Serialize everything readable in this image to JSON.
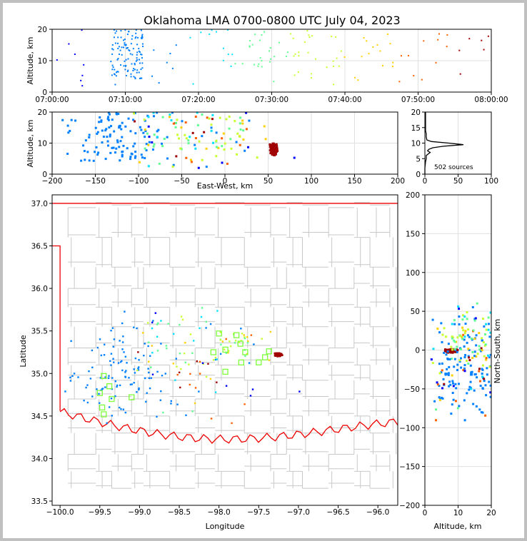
{
  "chart_data": [
    {
      "id": "time_height",
      "type": "scatter",
      "title": "Oklahoma LMA 0700-0800 UTC July 04, 2023",
      "ylabel": "Altitude, km",
      "xlim": [
        "07:00:00",
        "08:00:00"
      ],
      "ylim": [
        0,
        20
      ],
      "xticks": [
        "07:00:00",
        "07:10:00",
        "07:20:00",
        "07:30:00",
        "07:40:00",
        "07:50:00",
        "08:00:00"
      ],
      "yticks": [
        "0",
        "10",
        "20"
      ],
      "grid": true,
      "color_by": "time"
    },
    {
      "id": "ew_height",
      "type": "scatter",
      "xlabel": "East-West, km",
      "ylabel": "Altitude, km",
      "xlim": [
        -200,
        200
      ],
      "ylim": [
        0,
        20
      ],
      "xticks": [
        "−200",
        "−150",
        "−100",
        "−50",
        "0",
        "50",
        "100",
        "150",
        "200"
      ],
      "yticks": [
        "0",
        "10",
        "20"
      ],
      "grid": true
    },
    {
      "id": "histogram",
      "type": "line",
      "xlim": [
        0,
        100
      ],
      "ylim": [
        0,
        20
      ],
      "xticks": [
        "0",
        "50",
        "100"
      ],
      "yticks": [
        "0",
        "5",
        "10",
        "15",
        "20"
      ],
      "annotation": "502 sources",
      "profile": [
        {
          "alt": 0,
          "count": 0
        },
        {
          "alt": 2,
          "count": 0
        },
        {
          "alt": 4,
          "count": 1
        },
        {
          "alt": 5,
          "count": 2
        },
        {
          "alt": 6,
          "count": 2
        },
        {
          "alt": 6.5,
          "count": 5
        },
        {
          "alt": 7,
          "count": 8
        },
        {
          "alt": 7.5,
          "count": 4
        },
        {
          "alt": 8,
          "count": 6
        },
        {
          "alt": 8.5,
          "count": 12
        },
        {
          "alt": 9,
          "count": 28
        },
        {
          "alt": 9.5,
          "count": 58
        },
        {
          "alt": 10,
          "count": 36
        },
        {
          "alt": 10.5,
          "count": 10
        },
        {
          "alt": 11,
          "count": 3
        },
        {
          "alt": 12,
          "count": 2
        },
        {
          "alt": 13,
          "count": 2
        },
        {
          "alt": 14,
          "count": 1
        },
        {
          "alt": 16,
          "count": 1
        },
        {
          "alt": 18,
          "count": 1
        },
        {
          "alt": 20,
          "count": 1
        }
      ]
    },
    {
      "id": "plan_view",
      "type": "scatter",
      "xlabel": "Longitude",
      "ylabel": "Latitude",
      "xlim": [
        -100.1,
        -95.75
      ],
      "ylim": [
        33.45,
        37.1
      ],
      "xticks": [
        "−100.0",
        "−99.5",
        "−99.0",
        "−98.5",
        "−98.0",
        "−97.5",
        "−97.0",
        "−96.5",
        "−96.0"
      ],
      "yticks": [
        "33.5",
        "34.0",
        "34.5",
        "35.0",
        "35.5",
        "36.0",
        "36.5",
        "37.0"
      ],
      "stations": [
        [
          -99.45,
          34.97
        ],
        [
          -99.38,
          34.85
        ],
        [
          -99.5,
          34.77
        ],
        [
          -99.35,
          34.7
        ],
        [
          -99.47,
          34.6
        ],
        [
          -99.45,
          34.52
        ],
        [
          -99.1,
          34.72
        ],
        [
          -98.0,
          35.47
        ],
        [
          -98.07,
          35.25
        ],
        [
          -97.92,
          35.28
        ],
        [
          -97.92,
          35.02
        ],
        [
          -97.78,
          35.45
        ],
        [
          -97.73,
          35.35
        ],
        [
          -97.67,
          35.25
        ],
        [
          -97.72,
          35.13
        ],
        [
          -97.5,
          35.13
        ],
        [
          -97.42,
          35.19
        ],
        [
          -97.37,
          35.26
        ]
      ]
    },
    {
      "id": "ns_height",
      "type": "scatter",
      "xlabel": "Altitude, km",
      "ylabel": "North-South, km",
      "xlim": [
        0,
        20
      ],
      "ylim": [
        -200,
        200
      ],
      "xticks": [
        "0",
        "10",
        "20"
      ],
      "yticks": [
        "−200",
        "−150",
        "−100",
        "−50",
        "0",
        "50",
        "100",
        "150",
        "200"
      ],
      "grid": true
    }
  ]
}
